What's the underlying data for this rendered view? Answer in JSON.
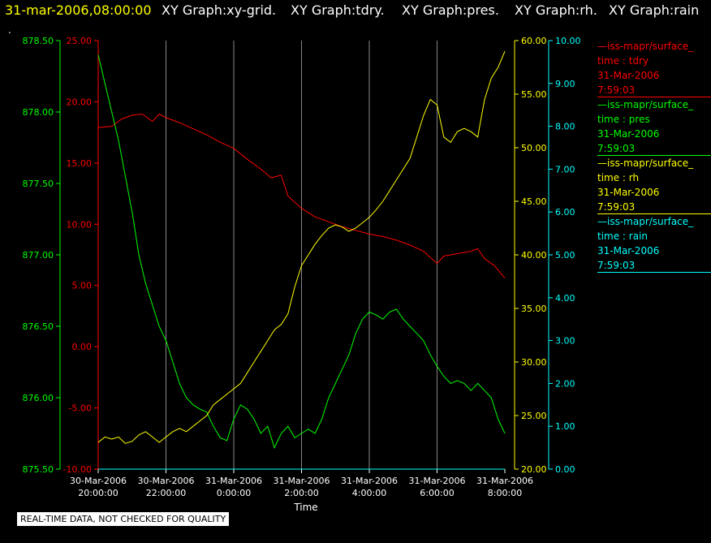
{
  "title": {
    "date": "31-mar-2006,08:00:00",
    "graphs": [
      "XY Graph:xy-grid.",
      "XY Graph:tdry.",
      "XY Graph:pres.",
      "XY Graph:rh.",
      "XY Graph:rain"
    ]
  },
  "footer": "REAL-TIME DATA, NOT CHECKED FOR QUALITY",
  "legend": [
    {
      "line1": "—iss-mapr/surface_",
      "line2": "time : tdry",
      "line3": "31-Mar-2006",
      "line4": "7:59:03",
      "color": "#ff0000"
    },
    {
      "line1": "—iss-mapr/surface_",
      "line2": "time : pres",
      "line3": "31-Mar-2006",
      "line4": "7:59:03",
      "color": "#00ff00"
    },
    {
      "line1": "—iss-mapr/surface_",
      "line2": "time : rh",
      "line3": "31-Mar-2006",
      "line4": "7:59:03",
      "color": "#ffff00"
    },
    {
      "line1": "—iss-mapr/surface_",
      "line2": "time : rain",
      "line3": "31-Mar-2006",
      "line4": "7:59:03",
      "color": "#00ffff"
    }
  ],
  "chart_data": {
    "type": "line",
    "xlabel": "Time",
    "x_ticks": [
      {
        "date": "30-Mar-2006",
        "time": "20:00:00"
      },
      {
        "date": "30-Mar-2006",
        "time": "22:00:00"
      },
      {
        "date": "31-Mar-2006",
        "time": "0:00:00"
      },
      {
        "date": "31-Mar-2006",
        "time": "2:00:00"
      },
      {
        "date": "31-Mar-2006",
        "time": "4:00:00"
      },
      {
        "date": "31-Mar-2006",
        "time": "6:00:00"
      },
      {
        "date": "31-Mar-2006",
        "time": "8:00:00"
      }
    ],
    "xlim_hours": [
      -4,
      8
    ],
    "grid": "vertical",
    "axes": {
      "pres": {
        "color": "#00ff00",
        "ylim": [
          875.5,
          878.5
        ],
        "ticks": [
          "875.50",
          "876.00",
          "876.50",
          "877.00",
          "877.50",
          "878.00",
          "878.50"
        ],
        "side": "left-outer"
      },
      "tdry": {
        "color": "#ff0000",
        "ylim": [
          -10,
          25
        ],
        "ticks": [
          "-10.00",
          "-5.00",
          "0.00",
          "5.00",
          "10.00",
          "15.00",
          "20.00",
          "25.00"
        ],
        "side": "left-inner"
      },
      "rh": {
        "color": "#ffff00",
        "ylim": [
          20,
          60
        ],
        "ticks": [
          "20.00",
          "25.00",
          "30.00",
          "35.00",
          "40.00",
          "45.00",
          "50.00",
          "55.00",
          "60.00"
        ],
        "side": "right-inner"
      },
      "rain": {
        "color": "#00ffff",
        "ylim": [
          0,
          10
        ],
        "ticks": [
          "0.00",
          "1.00",
          "2.00",
          "3.00",
          "4.00",
          "5.00",
          "6.00",
          "7.00",
          "8.00",
          "9.00",
          "10.00"
        ],
        "side": "right-outer"
      }
    },
    "series": [
      {
        "name": "tdry",
        "axis": "tdry",
        "color": "#ff0000",
        "points": [
          [
            -4,
            17.9
          ],
          [
            -3.6,
            18.0
          ],
          [
            -3.3,
            18.6
          ],
          [
            -3,
            18.9
          ],
          [
            -2.7,
            19.0
          ],
          [
            -2.4,
            18.4
          ],
          [
            -2.2,
            19.0
          ],
          [
            -2,
            18.7
          ],
          [
            -1.6,
            18.3
          ],
          [
            -1.2,
            17.8
          ],
          [
            -0.8,
            17.3
          ],
          [
            -0.4,
            16.7
          ],
          [
            0,
            16.2
          ],
          [
            0.4,
            15.3
          ],
          [
            0.8,
            14.5
          ],
          [
            1.1,
            13.8
          ],
          [
            1.4,
            14.0
          ],
          [
            1.6,
            12.3
          ],
          [
            2,
            11.3
          ],
          [
            2.4,
            10.6
          ],
          [
            2.8,
            10.2
          ],
          [
            3.2,
            9.8
          ],
          [
            3.6,
            9.5
          ],
          [
            4,
            9.2
          ],
          [
            4.4,
            9.0
          ],
          [
            4.8,
            8.7
          ],
          [
            5.2,
            8.3
          ],
          [
            5.6,
            7.8
          ],
          [
            6,
            6.8
          ],
          [
            6.2,
            7.4
          ],
          [
            6.6,
            7.6
          ],
          [
            7,
            7.8
          ],
          [
            7.2,
            8.0
          ],
          [
            7.4,
            7.2
          ],
          [
            7.7,
            6.6
          ],
          [
            8,
            5.6
          ]
        ]
      },
      {
        "name": "pres",
        "axis": "pres",
        "color": "#00ff00",
        "points": [
          [
            -4,
            878.4
          ],
          [
            -3.8,
            878.2
          ],
          [
            -3.6,
            878.0
          ],
          [
            -3.4,
            877.8
          ],
          [
            -3.2,
            877.55
          ],
          [
            -3,
            877.3
          ],
          [
            -2.8,
            877.0
          ],
          [
            -2.6,
            876.8
          ],
          [
            -2.4,
            876.65
          ],
          [
            -2.2,
            876.5
          ],
          [
            -2,
            876.4
          ],
          [
            -1.8,
            876.25
          ],
          [
            -1.6,
            876.1
          ],
          [
            -1.4,
            876.0
          ],
          [
            -1.2,
            875.95
          ],
          [
            -1,
            875.92
          ],
          [
            -0.8,
            875.9
          ],
          [
            -0.6,
            875.8
          ],
          [
            -0.4,
            875.72
          ],
          [
            -0.2,
            875.7
          ],
          [
            0,
            875.85
          ],
          [
            0.2,
            875.95
          ],
          [
            0.4,
            875.92
          ],
          [
            0.6,
            875.85
          ],
          [
            0.8,
            875.75
          ],
          [
            1,
            875.8
          ],
          [
            1.2,
            875.65
          ],
          [
            1.4,
            875.75
          ],
          [
            1.6,
            875.8
          ],
          [
            1.8,
            875.72
          ],
          [
            2,
            875.75
          ],
          [
            2.2,
            875.78
          ],
          [
            2.4,
            875.75
          ],
          [
            2.6,
            875.85
          ],
          [
            2.8,
            876.0
          ],
          [
            3,
            876.1
          ],
          [
            3.2,
            876.2
          ],
          [
            3.4,
            876.3
          ],
          [
            3.6,
            876.45
          ],
          [
            3.8,
            876.55
          ],
          [
            4,
            876.6
          ],
          [
            4.2,
            876.58
          ],
          [
            4.4,
            876.55
          ],
          [
            4.6,
            876.6
          ],
          [
            4.8,
            876.62
          ],
          [
            5,
            876.55
          ],
          [
            5.2,
            876.5
          ],
          [
            5.4,
            876.45
          ],
          [
            5.6,
            876.4
          ],
          [
            5.8,
            876.3
          ],
          [
            6,
            876.22
          ],
          [
            6.2,
            876.15
          ],
          [
            6.4,
            876.1
          ],
          [
            6.6,
            876.12
          ],
          [
            6.8,
            876.1
          ],
          [
            7,
            876.05
          ],
          [
            7.2,
            876.1
          ],
          [
            7.4,
            876.05
          ],
          [
            7.6,
            876.0
          ],
          [
            7.8,
            875.85
          ],
          [
            8,
            875.75
          ]
        ]
      },
      {
        "name": "rh",
        "axis": "rh",
        "color": "#ffff00",
        "points": [
          [
            -4,
            22.5
          ],
          [
            -3.8,
            23.0
          ],
          [
            -3.6,
            22.8
          ],
          [
            -3.4,
            23.0
          ],
          [
            -3.2,
            22.4
          ],
          [
            -3,
            22.6
          ],
          [
            -2.8,
            23.2
          ],
          [
            -2.6,
            23.5
          ],
          [
            -2.4,
            23.0
          ],
          [
            -2.2,
            22.5
          ],
          [
            -2,
            23.0
          ],
          [
            -1.8,
            23.5
          ],
          [
            -1.6,
            23.8
          ],
          [
            -1.4,
            23.5
          ],
          [
            -1.2,
            24.0
          ],
          [
            -1,
            24.5
          ],
          [
            -0.8,
            25.0
          ],
          [
            -0.6,
            26.0
          ],
          [
            -0.4,
            26.5
          ],
          [
            -0.2,
            27.0
          ],
          [
            0,
            27.5
          ],
          [
            0.2,
            28.0
          ],
          [
            0.4,
            29.0
          ],
          [
            0.6,
            30.0
          ],
          [
            0.8,
            31.0
          ],
          [
            1,
            32.0
          ],
          [
            1.2,
            33.0
          ],
          [
            1.4,
            33.5
          ],
          [
            1.6,
            34.5
          ],
          [
            1.8,
            37.0
          ],
          [
            2,
            39.0
          ],
          [
            2.2,
            40.0
          ],
          [
            2.4,
            41.0
          ],
          [
            2.6,
            41.8
          ],
          [
            2.8,
            42.5
          ],
          [
            3,
            42.8
          ],
          [
            3.2,
            42.6
          ],
          [
            3.4,
            42.2
          ],
          [
            3.6,
            42.5
          ],
          [
            3.8,
            43.0
          ],
          [
            4,
            43.5
          ],
          [
            4.2,
            44.2
          ],
          [
            4.4,
            45.0
          ],
          [
            4.6,
            46.0
          ],
          [
            4.8,
            47.0
          ],
          [
            5,
            48.0
          ],
          [
            5.2,
            49.0
          ],
          [
            5.4,
            51.0
          ],
          [
            5.6,
            53.0
          ],
          [
            5.8,
            54.5
          ],
          [
            6,
            54.0
          ],
          [
            6.2,
            51.0
          ],
          [
            6.4,
            50.5
          ],
          [
            6.6,
            51.5
          ],
          [
            6.8,
            51.8
          ],
          [
            7,
            51.5
          ],
          [
            7.2,
            51.0
          ],
          [
            7.4,
            54.5
          ],
          [
            7.6,
            56.5
          ],
          [
            7.8,
            57.5
          ],
          [
            8,
            59.0
          ]
        ]
      },
      {
        "name": "rain",
        "axis": "rain",
        "color": "#00ffff",
        "points": [
          [
            -4,
            0.0
          ],
          [
            8,
            0.0
          ]
        ]
      }
    ]
  }
}
